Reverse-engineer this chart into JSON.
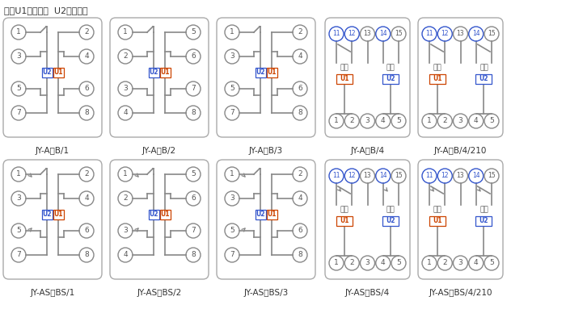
{
  "note": "注：U1辅助电源  U2整定电压",
  "lc": "#888888",
  "cc": "#888888",
  "u1c": "#cc4400",
  "u2c": "#3355cc",
  "fc": "#555555",
  "labels_row1": [
    "JY-A，B/1",
    "JY-A，B/2",
    "JY-A，B/3",
    "JY-A，B/4",
    "JY-A，B/4/210"
  ],
  "labels_row2": [
    "JY-AS，BS/1",
    "JY-AS，BS/2",
    "JY-AS，BS/3",
    "JY-AS，BS/4",
    "JY-AS，BS/4/210"
  ],
  "panel_border": "#aaaaaa",
  "figw": 7.0,
  "figh": 4.09,
  "dpi": 100
}
